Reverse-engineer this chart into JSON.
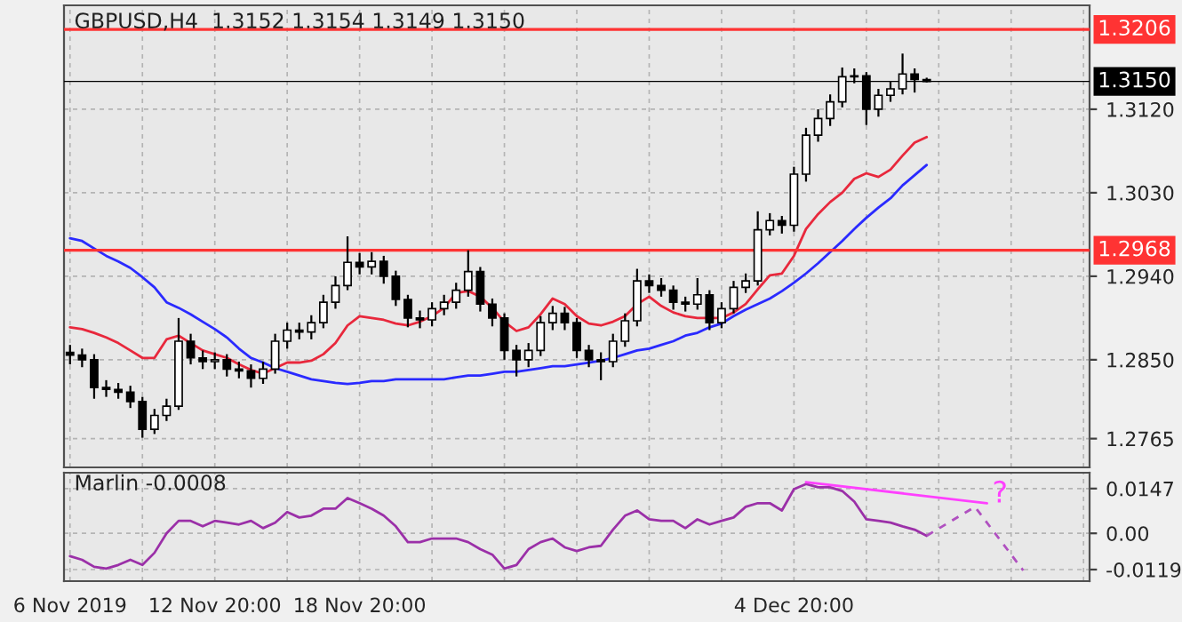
{
  "chart_data": [
    {
      "type": "candlestick",
      "title": "GBPUSD,H4  1.3152 1.3154 1.3149 1.3150",
      "categories": [
        null,
        null,
        null,
        null,
        null,
        null,
        null,
        null,
        null,
        null,
        null,
        null,
        null,
        null,
        null,
        null,
        null,
        null,
        null,
        null,
        null,
        null,
        null,
        null,
        null,
        null,
        null,
        null,
        null,
        null,
        null,
        null,
        null,
        null,
        null,
        null,
        null,
        null,
        null,
        null,
        null,
        null,
        null,
        null,
        null,
        null,
        null,
        null,
        null,
        null,
        null,
        null,
        null,
        null,
        null,
        null,
        null,
        null,
        null,
        null,
        null,
        null,
        null,
        null,
        null,
        null,
        null,
        null,
        null,
        null,
        null,
        null,
        null,
        null,
        null,
        null,
        null,
        null,
        null,
        null,
        null,
        null,
        null,
        null,
        null
      ],
      "ohlc": [
        [
          1.2858,
          1.2866,
          1.2845,
          1.2855
        ],
        [
          1.2855,
          1.2862,
          1.2842,
          1.285
        ],
        [
          1.285,
          1.2856,
          1.2808,
          1.282
        ],
        [
          1.282,
          1.2828,
          1.281,
          1.2818
        ],
        [
          1.2818,
          1.2825,
          1.2808,
          1.2815
        ],
        [
          1.2815,
          1.2822,
          1.2798,
          1.2805
        ],
        [
          1.2805,
          1.281,
          1.2766,
          1.2775
        ],
        [
          1.2775,
          1.2797,
          1.277,
          1.279
        ],
        [
          1.279,
          1.2808,
          1.2784,
          1.28
        ],
        [
          1.28,
          1.2895,
          1.2796,
          1.287
        ],
        [
          1.287,
          1.2878,
          1.2845,
          1.2852
        ],
        [
          1.2852,
          1.286,
          1.284,
          1.2848
        ],
        [
          1.2848,
          1.2858,
          1.284,
          1.285
        ],
        [
          1.285,
          1.2856,
          1.2832,
          1.284
        ],
        [
          1.284,
          1.2848,
          1.283,
          1.2838
        ],
        [
          1.2838,
          1.2845,
          1.282,
          1.283
        ],
        [
          1.283,
          1.2848,
          1.2824,
          1.284
        ],
        [
          1.284,
          1.2878,
          1.2835,
          1.287
        ],
        [
          1.287,
          1.289,
          1.2862,
          1.2882
        ],
        [
          1.2882,
          1.289,
          1.2872,
          1.288
        ],
        [
          1.288,
          1.2898,
          1.2872,
          1.289
        ],
        [
          1.289,
          1.292,
          1.2884,
          1.2912
        ],
        [
          1.2912,
          1.294,
          1.2905,
          1.293
        ],
        [
          1.293,
          1.2983,
          1.2925,
          1.2955
        ],
        [
          1.2955,
          1.2965,
          1.2942,
          1.295
        ],
        [
          1.295,
          1.2966,
          1.2942,
          1.2956
        ],
        [
          1.2956,
          1.2962,
          1.2932,
          1.294
        ],
        [
          1.294,
          1.2946,
          1.2908,
          1.2915
        ],
        [
          1.2915,
          1.292,
          1.2885,
          1.2895
        ],
        [
          1.2895,
          1.2903,
          1.2884,
          1.2893
        ],
        [
          1.2893,
          1.2912,
          1.2886,
          1.2905
        ],
        [
          1.2905,
          1.292,
          1.2898,
          1.2912
        ],
        [
          1.2912,
          1.2933,
          1.2905,
          1.2925
        ],
        [
          1.2925,
          1.2968,
          1.2918,
          1.2945
        ],
        [
          1.2945,
          1.295,
          1.2902,
          1.291
        ],
        [
          1.291,
          1.2916,
          1.2886,
          1.2895
        ],
        [
          1.2895,
          1.29,
          1.285,
          1.286
        ],
        [
          1.286,
          1.2866,
          1.2832,
          1.285
        ],
        [
          1.285,
          1.2868,
          1.2842,
          1.286
        ],
        [
          1.286,
          1.2897,
          1.2854,
          1.289
        ],
        [
          1.289,
          1.2908,
          1.2882,
          1.29
        ],
        [
          1.29,
          1.2907,
          1.2882,
          1.289
        ],
        [
          1.289,
          1.2895,
          1.2852,
          1.286
        ],
        [
          1.286,
          1.2866,
          1.2842,
          1.285
        ],
        [
          1.285,
          1.2858,
          1.2828,
          1.2848
        ],
        [
          1.2848,
          1.2878,
          1.2842,
          1.287
        ],
        [
          1.287,
          1.29,
          1.2864,
          1.2892
        ],
        [
          1.2892,
          1.2948,
          1.2886,
          1.2935
        ],
        [
          1.2935,
          1.2942,
          1.2922,
          1.293
        ],
        [
          1.293,
          1.2938,
          1.2918,
          1.2925
        ],
        [
          1.2925,
          1.293,
          1.2904,
          1.2912
        ],
        [
          1.2912,
          1.2918,
          1.2902,
          1.291
        ],
        [
          1.291,
          1.2938,
          1.2904,
          1.292
        ],
        [
          1.292,
          1.2925,
          1.2882,
          1.289
        ],
        [
          1.289,
          1.2912,
          1.2884,
          1.2905
        ],
        [
          1.2905,
          1.2935,
          1.29,
          1.2928
        ],
        [
          1.2928,
          1.2943,
          1.2922,
          1.2935
        ],
        [
          1.2935,
          1.301,
          1.293,
          1.299
        ],
        [
          1.299,
          1.3008,
          1.2984,
          1.3
        ],
        [
          1.3,
          1.3005,
          1.2986,
          1.2995
        ],
        [
          1.2995,
          1.3058,
          1.2988,
          1.305
        ],
        [
          1.305,
          1.31,
          1.3042,
          1.3092
        ],
        [
          1.3092,
          1.312,
          1.3085,
          1.311
        ],
        [
          1.311,
          1.3136,
          1.3102,
          1.3128
        ],
        [
          1.3128,
          1.3165,
          1.3122,
          1.3155
        ],
        [
          1.3155,
          1.3164,
          1.3148,
          1.3156
        ],
        [
          1.3156,
          1.316,
          1.3103,
          1.312
        ],
        [
          1.312,
          1.3142,
          1.3112,
          1.3135
        ],
        [
          1.3135,
          1.315,
          1.3128,
          1.3142
        ],
        [
          1.3142,
          1.318,
          1.3136,
          1.3158
        ],
        [
          1.3158,
          1.3164,
          1.3138,
          1.3152
        ],
        [
          1.3152,
          1.3154,
          1.3149,
          1.315
        ],
        null,
        null,
        null,
        null,
        null,
        null,
        null,
        null,
        null,
        null,
        null,
        null,
        null
      ],
      "series": [
        {
          "type": "line",
          "color": "#e8283c",
          "values": [
            1.2885,
            1.2883,
            1.2879,
            1.2874,
            1.2868,
            1.286,
            1.2852,
            1.2852,
            1.2872,
            1.2876,
            1.2868,
            1.286,
            1.2856,
            1.2852,
            1.2845,
            1.2839,
            1.2835,
            1.2841,
            1.2847,
            1.2847,
            1.2849,
            1.2856,
            1.2868,
            1.2887,
            1.2897,
            1.2895,
            1.2893,
            1.2889,
            1.2887,
            1.2891,
            1.2897,
            1.2906,
            1.2922,
            1.2924,
            1.2918,
            1.2906,
            1.2891,
            1.2881,
            1.2885,
            1.2899,
            1.2916,
            1.291,
            1.2897,
            1.2889,
            1.2887,
            1.2891,
            1.2897,
            1.291,
            1.2918,
            1.2908,
            1.2901,
            1.2897,
            1.2895,
            1.2895,
            1.2895,
            1.2901,
            1.291,
            1.2926,
            1.2941,
            1.2943,
            1.2962,
            1.2991,
            1.3007,
            1.302,
            1.303,
            1.3045,
            1.3051,
            1.3047,
            1.3055,
            1.307,
            1.3084,
            1.309,
            null,
            null,
            null,
            null,
            null,
            null,
            null,
            null,
            null,
            null,
            null,
            null,
            null
          ]
        },
        {
          "type": "line",
          "color": "#2a2aff",
          "values": [
            1.2981,
            1.2978,
            1.297,
            1.2962,
            1.2956,
            1.2949,
            1.2939,
            1.2928,
            1.2912,
            1.2906,
            1.2899,
            1.2891,
            1.2883,
            1.2874,
            1.2862,
            1.2852,
            1.2847,
            1.2841,
            1.2837,
            1.2833,
            1.2829,
            1.2827,
            1.2825,
            1.2824,
            1.2825,
            1.2827,
            1.2827,
            1.2829,
            1.2829,
            1.2829,
            1.2829,
            1.2829,
            1.2831,
            1.2833,
            1.2833,
            1.2835,
            1.2837,
            1.2837,
            1.2839,
            1.2841,
            1.2843,
            1.2843,
            1.2845,
            1.2847,
            1.2849,
            1.2852,
            1.2856,
            1.286,
            1.2862,
            1.2866,
            1.287,
            1.2876,
            1.2879,
            1.2885,
            1.2889,
            1.2897,
            1.2904,
            1.291,
            1.2916,
            1.2924,
            1.2933,
            1.2943,
            1.2954,
            1.2966,
            1.2978,
            1.2991,
            1.3003,
            1.3014,
            1.3024,
            1.3038,
            1.3049,
            1.306,
            null,
            null,
            null,
            null,
            null,
            null,
            null,
            null,
            null,
            null,
            null,
            null,
            null
          ]
        }
      ],
      "ylim": [
        1.2734,
        1.3232
      ],
      "yticks": [
        {
          "value": 1.312,
          "label": "1.3120"
        },
        {
          "value": 1.303,
          "label": "1.3030"
        },
        {
          "value": 1.294,
          "label": "1.2940"
        },
        {
          "value": 1.285,
          "label": "1.2850"
        },
        {
          "value": 1.2765,
          "label": "1.2765"
        }
      ],
      "ref_lines": [
        {
          "axis": "y",
          "value": 1.3206,
          "label": "1.3206",
          "color": "#ff3333"
        },
        {
          "axis": "y",
          "value": 1.2968,
          "label": "1.2968",
          "color": "#ff3333"
        },
        {
          "axis": "y",
          "value": 1.315,
          "label": "1.3150",
          "color": "#000000"
        }
      ],
      "grid": true,
      "tick_labels": "y"
    },
    {
      "type": "line",
      "title": "Marlin -0.0008",
      "categories": [
        "6 Nov 2019",
        null,
        null,
        null,
        null,
        null,
        null,
        null,
        null,
        null,
        null,
        null,
        "12 Nov 20:00",
        null,
        null,
        null,
        null,
        null,
        null,
        null,
        null,
        null,
        null,
        null,
        "18 Nov 20:00",
        null,
        null,
        null,
        null,
        null,
        null,
        null,
        null,
        null,
        null,
        null,
        null,
        null,
        null,
        null,
        null,
        null,
        null,
        null,
        null,
        null,
        null,
        null,
        null,
        null,
        null,
        null,
        null,
        null,
        null,
        null,
        null,
        null,
        null,
        null,
        "4 Dec 20:00",
        null,
        null,
        null,
        null,
        null,
        null,
        null,
        null,
        null,
        null,
        null,
        null,
        null,
        null,
        null,
        null,
        null,
        null,
        null,
        null,
        null,
        null,
        null,
        null
      ],
      "series": [
        {
          "color": "#9b30a8",
          "line_style": "solid",
          "values": [
            -0.0075,
            -0.0087,
            -0.011,
            -0.0116,
            -0.0104,
            -0.0087,
            -0.0104,
            -0.0064,
            0.0,
            0.0041,
            0.0041,
            0.0023,
            0.0041,
            0.0035,
            0.0029,
            0.0041,
            0.0017,
            0.0035,
            0.007,
            0.0052,
            0.0058,
            0.0081,
            0.0081,
            0.0116,
            0.0099,
            0.0081,
            0.0058,
            0.0023,
            -0.0029,
            -0.0029,
            -0.0017,
            -0.0017,
            -0.0017,
            -0.0029,
            -0.0052,
            -0.007,
            -0.0116,
            -0.0104,
            -0.0052,
            -0.0029,
            -0.0017,
            -0.0046,
            -0.0058,
            -0.0046,
            -0.0041,
            0.0012,
            0.0058,
            0.0075,
            0.0046,
            0.0041,
            0.0041,
            0.0017,
            0.0046,
            0.0029,
            0.0041,
            0.0052,
            0.0087,
            0.0099,
            0.0099,
            0.0075,
            0.0145,
            0.0162,
            0.0151,
            0.0151,
            0.0139,
            0.0104,
            0.0046,
            0.0041,
            0.0035,
            0.0023,
            0.0012,
            -0.0008,
            null,
            null,
            null,
            null,
            null,
            null,
            null,
            null,
            null,
            null,
            null,
            null,
            null
          ]
        },
        {
          "color": "#ff40ff",
          "line_style": "solid",
          "values": [
            null,
            null,
            null,
            null,
            null,
            null,
            null,
            null,
            null,
            null,
            null,
            null,
            null,
            null,
            null,
            null,
            null,
            null,
            null,
            null,
            null,
            null,
            null,
            null,
            null,
            null,
            null,
            null,
            null,
            null,
            null,
            null,
            null,
            null,
            null,
            null,
            null,
            null,
            null,
            null,
            null,
            null,
            null,
            null,
            null,
            null,
            null,
            null,
            null,
            null,
            null,
            null,
            null,
            null,
            null,
            null,
            null,
            null,
            null,
            null,
            null,
            0.0168,
            null,
            null,
            null,
            null,
            null,
            null,
            null,
            null,
            null,
            null,
            null,
            null,
            null,
            null,
            0.0099,
            null,
            null,
            null,
            null,
            null,
            null,
            null,
            null
          ]
        },
        {
          "color": "#b050c0",
          "line_style": "dashed",
          "values": [
            null,
            null,
            null,
            null,
            null,
            null,
            null,
            null,
            null,
            null,
            null,
            null,
            null,
            null,
            null,
            null,
            null,
            null,
            null,
            null,
            null,
            null,
            null,
            null,
            null,
            null,
            null,
            null,
            null,
            null,
            null,
            null,
            null,
            null,
            null,
            null,
            null,
            null,
            null,
            null,
            null,
            null,
            null,
            null,
            null,
            null,
            null,
            null,
            null,
            null,
            null,
            null,
            null,
            null,
            null,
            null,
            null,
            null,
            null,
            null,
            null,
            null,
            null,
            null,
            null,
            null,
            null,
            null,
            null,
            null,
            null,
            -0.0008,
            null,
            null,
            null,
            0.0087,
            null,
            null,
            null,
            -0.0122,
            null,
            null,
            null,
            null,
            null
          ]
        }
      ],
      "annotations": [
        "?"
      ],
      "ylim": [
        -0.0157,
        0.0199
      ],
      "yticks": [
        0.0147,
        {
          "value": 0,
          "label": "0.00"
        },
        -0.0119
      ],
      "grid": true
    }
  ]
}
